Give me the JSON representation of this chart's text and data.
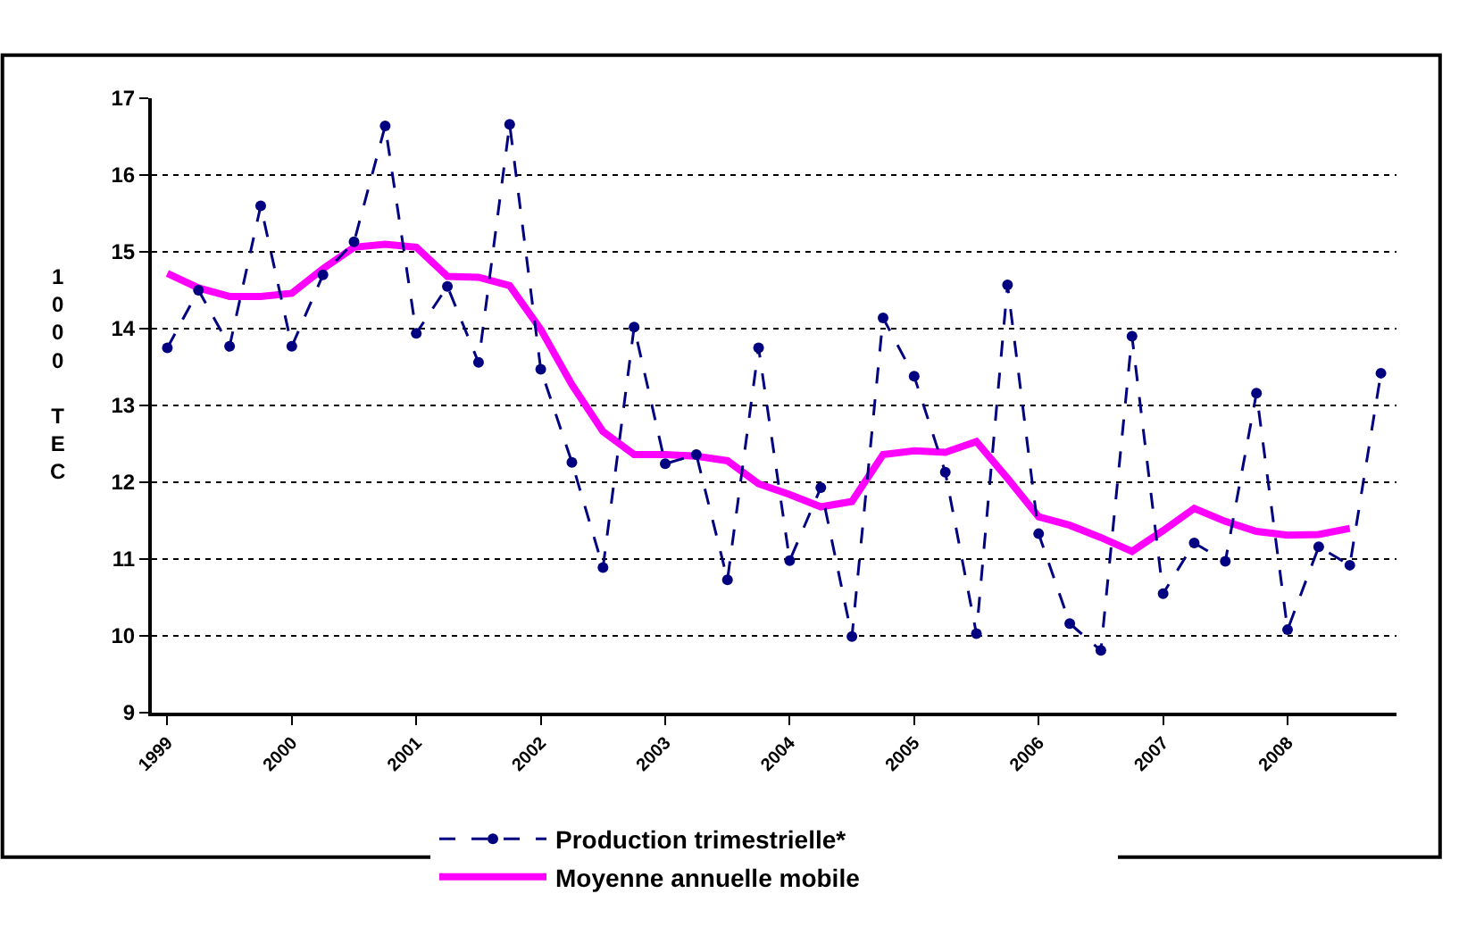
{
  "chart_data": {
    "type": "line",
    "ylabel": "1000 TEC",
    "categories": [
      "1999",
      null,
      null,
      null,
      "2000",
      null,
      null,
      null,
      "2001",
      null,
      null,
      null,
      "2002",
      null,
      null,
      null,
      "2003",
      null,
      null,
      null,
      "2004",
      null,
      null,
      null,
      "2005",
      null,
      null,
      null,
      "2006",
      null,
      null,
      null,
      "2007",
      null,
      null,
      null,
      "2008",
      null,
      null,
      null
    ],
    "series": [
      {
        "name": "Production trimestrielle*",
        "color": "#000080",
        "marker": "circle",
        "line_style": "dashed",
        "values": [
          13.75,
          14.5,
          13.77,
          15.6,
          13.77,
          14.7,
          15.13,
          16.64,
          13.94,
          14.55,
          13.56,
          16.66,
          13.47,
          12.26,
          10.89,
          14.02,
          12.24,
          12.36,
          10.73,
          13.75,
          10.98,
          11.93,
          9.99,
          14.14,
          13.38,
          12.13,
          10.03,
          14.57,
          11.33,
          10.16,
          9.81,
          13.9,
          10.55,
          11.21,
          10.97,
          13.16,
          10.08,
          11.16,
          10.92,
          13.42
        ]
      },
      {
        "name": "Moyenne annuelle mobile",
        "color": "#ff00ff",
        "marker": "none",
        "line_style": "solid",
        "values": [
          14.72,
          14.53,
          14.42,
          14.42,
          14.46,
          14.78,
          15.06,
          15.1,
          15.06,
          14.68,
          14.67,
          14.56,
          13.99,
          13.27,
          12.66,
          12.36,
          12.36,
          12.34,
          12.28,
          11.98,
          11.84,
          11.68,
          11.75,
          12.36,
          12.41,
          12.39,
          12.53,
          12.05,
          11.55,
          11.44,
          11.28,
          11.1,
          11.37,
          11.66,
          11.49,
          11.36,
          11.31,
          11.32,
          11.4,
          null
        ]
      }
    ],
    "ylim": [
      9,
      17
    ],
    "yticks": [
      9,
      10,
      11,
      12,
      13,
      14,
      15,
      16,
      17
    ],
    "grid": "y",
    "legend": "bottom"
  }
}
